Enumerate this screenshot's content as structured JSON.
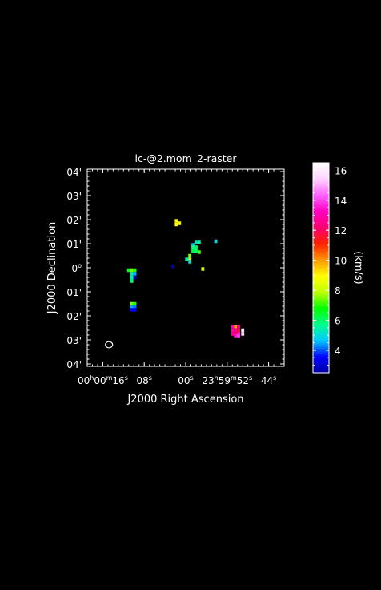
{
  "chart_data": {
    "type": "heatmap",
    "title": "lc-@2.mom_2-raster",
    "xlabel": "J2000 Right Ascension",
    "ylabel": "J2000 Declination",
    "x_ticks": [
      {
        "ra_sec": 16,
        "h": "00",
        "m": "00",
        "s": "16"
      },
      {
        "ra_sec": 8,
        "s": "08"
      },
      {
        "ra_sec": 0,
        "s": "00"
      },
      {
        "ra_sec": -8,
        "h": "23",
        "m": "59",
        "s": "52"
      },
      {
        "ra_sec": -16,
        "s": "44"
      }
    ],
    "y_ticks": [
      {
        "dec_arcmin": 4,
        "label": "04'"
      },
      {
        "dec_arcmin": 3,
        "label": "03'"
      },
      {
        "dec_arcmin": 2,
        "label": "02'"
      },
      {
        "dec_arcmin": 1,
        "label": "01'"
      },
      {
        "dec_arcmin": 0,
        "label": "0",
        "deg": true
      },
      {
        "dec_arcmin": -1,
        "label": "01'"
      },
      {
        "dec_arcmin": -2,
        "label": "02'"
      },
      {
        "dec_arcmin": -3,
        "label": "03'"
      },
      {
        "dec_arcmin": -4,
        "label": "04'"
      }
    ],
    "xlim_ra_sec": [
      19,
      -19
    ],
    "ylim_dec_arcmin": [
      -4.1,
      4.1
    ],
    "colorbar": {
      "label": "(km/s)",
      "min": 2.5,
      "max": 16.5,
      "ticks": [
        4,
        6,
        8,
        10,
        12,
        14,
        16
      ],
      "colors": [
        "#0000a0",
        "#0000ff",
        "#00c8ff",
        "#00ff90",
        "#00ff00",
        "#c0ff00",
        "#ffff00",
        "#ff9900",
        "#ff2200",
        "#ff0070",
        "#ff00c0",
        "#ff60ff",
        "#ffd0ff",
        "#ffffff"
      ]
    },
    "pixels": [
      {
        "ra_sec": 1.8,
        "dec_arcmin": 1.95,
        "value": 9.0
      },
      {
        "ra_sec": 1.8,
        "dec_arcmin": 1.8,
        "value": 9.0
      },
      {
        "ra_sec": 1.2,
        "dec_arcmin": 1.85,
        "value": 8.8
      },
      {
        "ra_sec": 2.5,
        "dec_arcmin": 0.05,
        "value": 2.6
      },
      {
        "ra_sec": -5.8,
        "dec_arcmin": 1.1,
        "value": 5.0
      },
      {
        "ra_sec": -2.0,
        "dec_arcmin": 1.05,
        "value": 5.2
      },
      {
        "ra_sec": -2.6,
        "dec_arcmin": 1.05,
        "value": 5.5
      },
      {
        "ra_sec": -1.4,
        "dec_arcmin": 0.95,
        "value": 4.6
      },
      {
        "ra_sec": -2.0,
        "dec_arcmin": 0.85,
        "value": 6.2
      },
      {
        "ra_sec": -1.4,
        "dec_arcmin": 0.85,
        "value": 5.8
      },
      {
        "ra_sec": -2.0,
        "dec_arcmin": 0.7,
        "value": 5.9
      },
      {
        "ra_sec": -1.4,
        "dec_arcmin": 0.7,
        "value": 6.3
      },
      {
        "ra_sec": -2.6,
        "dec_arcmin": 0.65,
        "value": 7.3
      },
      {
        "ra_sec": -0.8,
        "dec_arcmin": 0.5,
        "value": 7.5
      },
      {
        "ra_sec": -0.8,
        "dec_arcmin": 0.35,
        "value": 8.2
      },
      {
        "ra_sec": -0.2,
        "dec_arcmin": 0.35,
        "value": 5.2
      },
      {
        "ra_sec": -0.8,
        "dec_arcmin": 0.25,
        "value": 5.0
      },
      {
        "ra_sec": -3.3,
        "dec_arcmin": -0.05,
        "value": 8.2
      },
      {
        "ra_sec": 11.0,
        "dec_arcmin": -0.1,
        "value": 6.5
      },
      {
        "ra_sec": 10.4,
        "dec_arcmin": -0.1,
        "value": 7.5
      },
      {
        "ra_sec": 9.8,
        "dec_arcmin": -0.1,
        "value": 7.0
      },
      {
        "ra_sec": 10.4,
        "dec_arcmin": -0.25,
        "value": 5.5
      },
      {
        "ra_sec": 9.8,
        "dec_arcmin": -0.25,
        "value": 4.5
      },
      {
        "ra_sec": 10.4,
        "dec_arcmin": -0.4,
        "value": 5.6
      },
      {
        "ra_sec": 9.8,
        "dec_arcmin": -0.4,
        "value": 3.0
      },
      {
        "ra_sec": 10.4,
        "dec_arcmin": -0.55,
        "value": 6.0
      },
      {
        "ra_sec": 10.4,
        "dec_arcmin": -1.5,
        "value": 7.5
      },
      {
        "ra_sec": 9.8,
        "dec_arcmin": -1.5,
        "value": 7.0
      },
      {
        "ra_sec": 10.4,
        "dec_arcmin": -1.65,
        "value": 4.5
      },
      {
        "ra_sec": 9.8,
        "dec_arcmin": -1.65,
        "value": 4.2
      },
      {
        "ra_sec": 10.4,
        "dec_arcmin": -1.75,
        "value": 3.5
      },
      {
        "ra_sec": 9.8,
        "dec_arcmin": -1.75,
        "value": 3.5
      },
      {
        "ra_sec": -9.6,
        "dec_arcmin": -2.45,
        "value": 10.0
      },
      {
        "ra_sec": -10.2,
        "dec_arcmin": -2.45,
        "value": 12.5
      },
      {
        "ra_sec": -9.0,
        "dec_arcmin": -2.45,
        "value": 13.0
      },
      {
        "ra_sec": -11.0,
        "dec_arcmin": -2.6,
        "value": 15.8
      },
      {
        "ra_sec": -10.2,
        "dec_arcmin": -2.6,
        "value": 12.0
      },
      {
        "ra_sec": -9.6,
        "dec_arcmin": -2.6,
        "value": 12.5
      },
      {
        "ra_sec": -9.0,
        "dec_arcmin": -2.6,
        "value": 13.0
      },
      {
        "ra_sec": -11.0,
        "dec_arcmin": -2.75,
        "value": 15.5
      },
      {
        "ra_sec": -10.2,
        "dec_arcmin": -2.75,
        "value": 13.5
      },
      {
        "ra_sec": -9.6,
        "dec_arcmin": -2.75,
        "value": 12.5
      },
      {
        "ra_sec": -9.0,
        "dec_arcmin": -2.75,
        "value": 12.8
      },
      {
        "ra_sec": -10.2,
        "dec_arcmin": -2.85,
        "value": 14.0
      },
      {
        "ra_sec": -9.6,
        "dec_arcmin": -2.85,
        "value": 13.5
      }
    ],
    "beam": {
      "ra_sec": 14.8,
      "dec_arcmin": -3.2
    }
  }
}
